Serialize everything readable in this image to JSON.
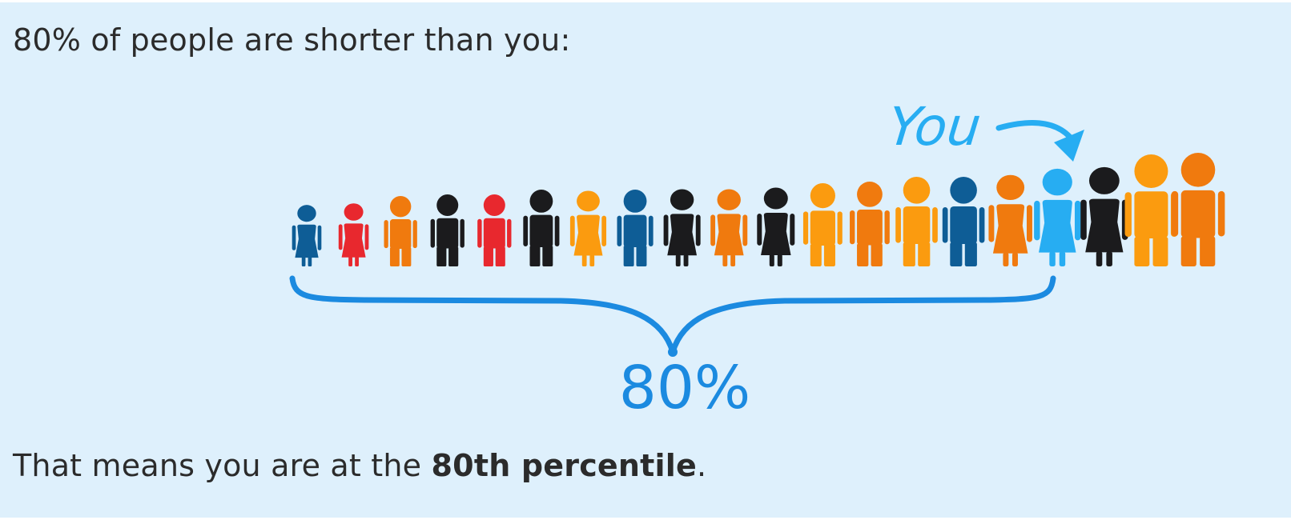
{
  "header": {
    "text": "80% of people are shorter than you:"
  },
  "figure": {
    "you_label": "You",
    "percent_label": "80%",
    "accent_color": "#1b8ae0",
    "you_color": "#27adf2",
    "people": [
      {
        "g": "f",
        "c": "#0e5d96",
        "h": 78
      },
      {
        "g": "f",
        "c": "#e8282e",
        "h": 80
      },
      {
        "g": "m",
        "c": "#f07a0e",
        "h": 88
      },
      {
        "g": "m",
        "c": "#1b1b1d",
        "h": 90
      },
      {
        "g": "m",
        "c": "#e8282e",
        "h": 90
      },
      {
        "g": "m",
        "c": "#1b1b1d",
        "h": 96
      },
      {
        "g": "f",
        "c": "#fb9b0f",
        "h": 96
      },
      {
        "g": "m",
        "c": "#0e5d96",
        "h": 96
      },
      {
        "g": "f",
        "c": "#1b1b1d",
        "h": 98
      },
      {
        "g": "f",
        "c": "#f07a0e",
        "h": 98
      },
      {
        "g": "f",
        "c": "#1b1b1d",
        "h": 100
      },
      {
        "g": "m",
        "c": "#fb9b0f",
        "h": 104
      },
      {
        "g": "m",
        "c": "#f07a0e",
        "h": 106
      },
      {
        "g": "m",
        "c": "#fb9b0f",
        "h": 112
      },
      {
        "g": "m",
        "c": "#0e5d96",
        "h": 112
      },
      {
        "g": "f",
        "c": "#f07a0e",
        "h": 116
      },
      {
        "g": "f",
        "c": "#27adf2",
        "h": 124,
        "you": true
      },
      {
        "g": "f",
        "c": "#1b1b1d",
        "h": 126
      },
      {
        "g": "m",
        "c": "#fb9b0f",
        "h": 140
      },
      {
        "g": "m",
        "c": "#f07a0e",
        "h": 142
      }
    ]
  },
  "footer": {
    "prefix": "That means you are at the ",
    "bold": "80th percentile",
    "suffix": "."
  }
}
